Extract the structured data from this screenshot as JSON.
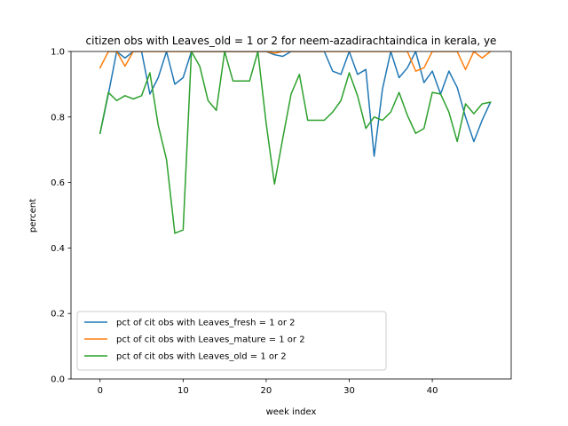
{
  "chart_data": {
    "type": "line",
    "title": "citizen obs with Leaves_old = 1 or 2 for neem-azadirachtaindica in kerala, ye",
    "xlabel": "week index",
    "ylabel": "percent",
    "xlim": [
      -3.5,
      49.5
    ],
    "ylim": [
      0.0,
      1.0
    ],
    "xticks": [
      0,
      10,
      20,
      30,
      40
    ],
    "yticks": [
      0.0,
      0.2,
      0.4,
      0.6,
      0.8,
      1.0
    ],
    "xtick_labels": [
      "0",
      "10",
      "20",
      "30",
      "40"
    ],
    "ytick_labels": [
      "0.0",
      "0.2",
      "0.4",
      "0.6",
      "0.8",
      "1.0"
    ],
    "legend_position": "lower-left",
    "grid": false,
    "series": [
      {
        "name": "pct of cit obs with Leaves_fresh = 1 or 2",
        "color": "#1f77b4",
        "x": [
          0,
          1,
          2,
          3,
          4,
          5,
          6,
          7,
          8,
          9,
          10,
          11,
          12,
          13,
          14,
          15,
          16,
          17,
          18,
          19,
          20,
          21,
          22,
          23,
          24,
          25,
          26,
          27,
          28,
          29,
          30,
          31,
          32,
          33,
          34,
          35,
          36,
          37,
          38,
          39,
          40,
          41,
          42,
          43,
          44,
          45,
          46,
          47
        ],
        "values": [
          0.75,
          0.87,
          1.0,
          0.98,
          1.0,
          1.0,
          0.87,
          0.92,
          1.0,
          0.9,
          0.92,
          1.0,
          1.0,
          1.0,
          1.0,
          1.0,
          1.0,
          1.0,
          1.0,
          1.0,
          1.0,
          0.99,
          0.985,
          1.0,
          1.0,
          1.0,
          1.0,
          1.0,
          0.94,
          0.93,
          1.0,
          0.93,
          0.945,
          0.68,
          0.885,
          1.0,
          0.92,
          0.95,
          1.0,
          0.905,
          0.94,
          0.87,
          0.94,
          0.89,
          0.8,
          0.725,
          0.79,
          0.845
        ]
      },
      {
        "name": "pct of cit obs with Leaves_mature = 1 or 2",
        "color": "#ff7f0e",
        "x": [
          0,
          1,
          2,
          3,
          4,
          5,
          6,
          7,
          8,
          9,
          10,
          11,
          12,
          13,
          14,
          15,
          16,
          17,
          18,
          19,
          20,
          21,
          22,
          23,
          24,
          25,
          26,
          27,
          28,
          29,
          30,
          31,
          32,
          33,
          34,
          35,
          36,
          37,
          38,
          39,
          40,
          41,
          42,
          43,
          44,
          45,
          46,
          47
        ],
        "values": [
          0.95,
          1.0,
          1.0,
          0.955,
          1.0,
          1.0,
          1.0,
          1.0,
          1.0,
          1.0,
          1.0,
          1.0,
          1.0,
          1.0,
          1.0,
          1.0,
          1.0,
          1.0,
          1.0,
          1.0,
          1.0,
          0.995,
          1.0,
          1.0,
          1.0,
          1.0,
          1.0,
          1.0,
          1.0,
          1.0,
          1.0,
          1.0,
          1.0,
          1.0,
          1.0,
          1.0,
          1.0,
          1.0,
          0.94,
          0.95,
          1.0,
          1.0,
          1.0,
          1.0,
          0.945,
          1.0,
          0.98,
          1.0
        ]
      },
      {
        "name": "pct of cit obs with Leaves_old = 1 or 2",
        "color": "#2ca02c",
        "x": [
          0,
          1,
          2,
          3,
          4,
          5,
          6,
          7,
          8,
          9,
          10,
          11,
          12,
          13,
          14,
          15,
          16,
          17,
          18,
          19,
          20,
          21,
          22,
          23,
          24,
          25,
          26,
          27,
          28,
          29,
          30,
          31,
          32,
          33,
          34,
          35,
          36,
          37,
          38,
          39,
          40,
          41,
          42,
          43,
          44,
          45,
          46,
          47
        ],
        "values": [
          0.75,
          0.875,
          0.85,
          0.865,
          0.855,
          0.865,
          0.935,
          0.775,
          0.67,
          0.445,
          0.455,
          1.0,
          0.955,
          0.85,
          0.82,
          1.0,
          0.91,
          0.91,
          0.91,
          1.0,
          0.78,
          0.595,
          0.735,
          0.87,
          0.93,
          0.79,
          0.79,
          0.79,
          0.815,
          0.85,
          0.935,
          0.865,
          0.765,
          0.8,
          0.79,
          0.815,
          0.875,
          0.805,
          0.75,
          0.765,
          0.875,
          0.87,
          0.815,
          0.725,
          0.84,
          0.81,
          0.84,
          0.845
        ]
      }
    ]
  }
}
